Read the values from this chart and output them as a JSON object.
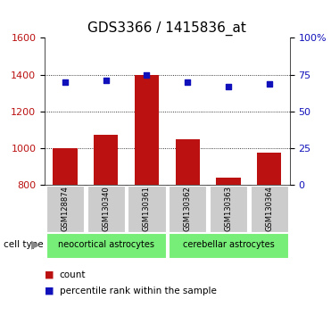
{
  "title": "GDS3366 / 1415836_at",
  "samples": [
    "GSM128874",
    "GSM130340",
    "GSM130361",
    "GSM130362",
    "GSM130363",
    "GSM130364"
  ],
  "counts": [
    1000,
    1075,
    1400,
    1050,
    840,
    975
  ],
  "percentiles": [
    70,
    71,
    75,
    70,
    67,
    69
  ],
  "ylim_left": [
    800,
    1600
  ],
  "ylim_right": [
    0,
    100
  ],
  "yticks_left": [
    800,
    1000,
    1200,
    1400,
    1600
  ],
  "yticks_right": [
    0,
    25,
    50,
    75,
    100
  ],
  "yticklabels_right": [
    "0",
    "25",
    "50",
    "75",
    "100%"
  ],
  "bar_color": "#bb1111",
  "dot_color": "#1111bb",
  "bar_baseline": 800,
  "group1_label": "neocortical astrocytes",
  "group2_label": "cerebellar astrocytes",
  "group1_indices": [
    0,
    1,
    2
  ],
  "group2_indices": [
    3,
    4,
    5
  ],
  "group_color": "#77ee77",
  "cell_type_label": "cell type",
  "legend_count_label": "count",
  "legend_percentile_label": "percentile rank within the sample",
  "background_color": "#ffffff",
  "grid_color": "#000000",
  "tick_label_bg": "#cccccc",
  "title_fontsize": 11,
  "axis_fontsize": 8,
  "label_fontsize": 7.5
}
